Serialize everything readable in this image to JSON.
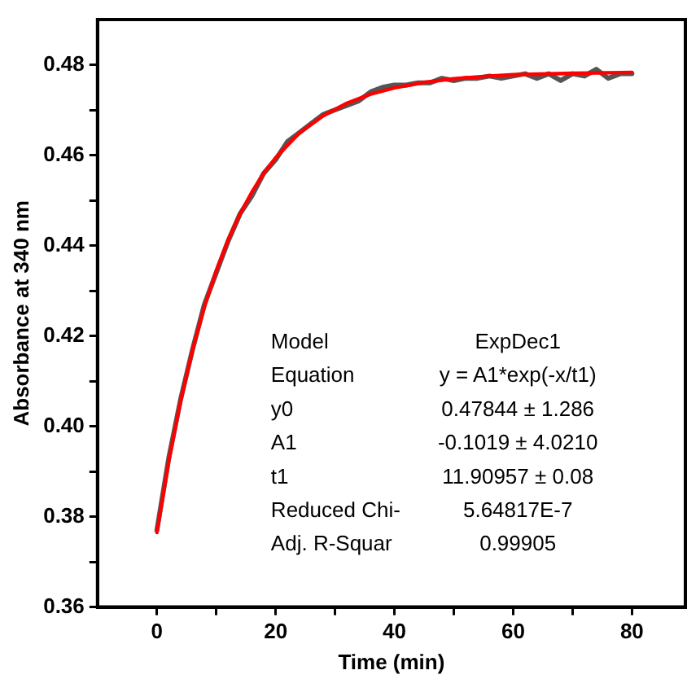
{
  "chart_data": {
    "type": "line",
    "xlabel": "Time (min)",
    "ylabel": "Absorbance at 340 nm",
    "xlim": [
      -10,
      89
    ],
    "ylim": [
      0.36,
      0.49
    ],
    "xticks": [
      0,
      {
        "value": 10,
        "label": null
      },
      20,
      {
        "value": 30,
        "label": null
      },
      40,
      {
        "value": 50,
        "label": null
      },
      60,
      {
        "value": 70,
        "label": null
      },
      80
    ],
    "yticks": [
      {
        "value": 0.36,
        "label": "0.36"
      },
      {
        "value": 0.37,
        "label": null
      },
      {
        "value": 0.38,
        "label": "0.38"
      },
      {
        "value": 0.39,
        "label": null
      },
      {
        "value": 0.4,
        "label": "0.40"
      },
      {
        "value": 0.41,
        "label": null
      },
      {
        "value": 0.42,
        "label": "0.42"
      },
      {
        "value": 0.43,
        "label": null
      },
      {
        "value": 0.44,
        "label": "0.44"
      },
      {
        "value": 0.45,
        "label": null
      },
      {
        "value": 0.46,
        "label": "0.46"
      },
      {
        "value": 0.47,
        "label": null
      },
      {
        "value": 0.48,
        "label": "0.48"
      }
    ],
    "grid": false,
    "legend": false,
    "marker": "none",
    "line_style": "solid",
    "series": [
      {
        "color": "#555555",
        "x": [
          0,
          2,
          4,
          6,
          8,
          10,
          12,
          14,
          16,
          18,
          20,
          22,
          24,
          26,
          28,
          30,
          32,
          34,
          36,
          38,
          40,
          42,
          44,
          46,
          48,
          50,
          52,
          54,
          56,
          58,
          60,
          62,
          64,
          66,
          68,
          70,
          72,
          74,
          76,
          78,
          80
        ],
        "values": [
          0.377,
          0.393,
          0.406,
          0.417,
          0.427,
          0.434,
          0.441,
          0.447,
          0.451,
          0.456,
          0.459,
          0.463,
          0.465,
          0.467,
          0.469,
          0.47,
          0.471,
          0.472,
          0.474,
          0.475,
          0.4755,
          0.4755,
          0.476,
          0.476,
          0.477,
          0.4765,
          0.477,
          0.477,
          0.4775,
          0.477,
          0.4775,
          0.478,
          0.477,
          0.478,
          0.4765,
          0.478,
          0.4775,
          0.479,
          0.477,
          0.478,
          0.478
        ]
      },
      {
        "color": "#ff0000",
        "x": [
          0,
          2,
          4,
          6,
          8,
          10,
          12,
          14,
          16,
          18,
          20,
          24,
          28,
          32,
          36,
          40,
          45,
          50,
          55,
          60,
          70,
          80
        ],
        "values": [
          0.3765,
          0.3923,
          0.4056,
          0.4169,
          0.4264,
          0.4344,
          0.4412,
          0.447,
          0.4518,
          0.456,
          0.4594,
          0.4649,
          0.4687,
          0.4715,
          0.4735,
          0.4749,
          0.4761,
          0.4769,
          0.4774,
          0.4778,
          0.4781,
          0.4783
        ]
      }
    ],
    "annotations": [
      "Model",
      "ExpDec1",
      "Equation",
      "y = A1*exp(-x/t1)",
      "y0",
      "0.47844 ± 1.286",
      "A1",
      "-0.1019 ± 4.0210",
      "t1",
      "11.90957 ± 0.08",
      "Reduced Chi-",
      "5.64817E-7",
      "Adj. R-Squar",
      "0.99905"
    ]
  }
}
